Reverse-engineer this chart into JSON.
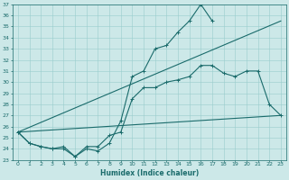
{
  "xlabel": "Humidex (Indice chaleur)",
  "xlim": [
    -0.5,
    23.5
  ],
  "ylim": [
    23,
    37
  ],
  "ytick_min": 23,
  "ytick_max": 37,
  "xticks": [
    0,
    1,
    2,
    3,
    4,
    5,
    6,
    7,
    8,
    9,
    10,
    11,
    12,
    13,
    14,
    15,
    16,
    17,
    18,
    19,
    20,
    21,
    22,
    23
  ],
  "bg_color": "#cce8e8",
  "grid_color": "#99cccc",
  "line_color": "#1a6b6b",
  "line_width": 0.8,
  "marker": "+",
  "marker_size": 3,
  "series": [
    {
      "x": [
        0,
        1,
        2,
        3,
        4,
        5,
        6,
        7,
        8,
        9,
        10,
        11,
        12,
        13,
        14,
        15,
        16,
        17
      ],
      "y": [
        25.5,
        24.5,
        24.2,
        24.0,
        24.0,
        23.3,
        24.0,
        23.8,
        24.5,
        26.5,
        30.5,
        31.0,
        33.0,
        33.3,
        34.5,
        35.5,
        37.0,
        35.5
      ]
    },
    {
      "x": [
        0,
        1,
        2,
        3,
        4,
        5,
        6,
        7,
        8,
        9,
        10,
        11,
        12,
        13,
        14,
        15,
        16,
        17,
        18,
        19,
        20,
        21,
        22,
        23
      ],
      "y": [
        25.5,
        24.5,
        24.2,
        24.0,
        24.2,
        23.3,
        24.2,
        24.2,
        25.2,
        25.5,
        28.5,
        29.5,
        29.5,
        30.0,
        30.2,
        30.5,
        31.5,
        31.5,
        30.8,
        30.5,
        31.0,
        31.0,
        28.0,
        27.0
      ]
    },
    {
      "x": [
        0,
        23
      ],
      "y": [
        25.5,
        27.0
      ]
    },
    {
      "x": [
        0,
        23
      ],
      "y": [
        25.5,
        35.5
      ]
    }
  ]
}
